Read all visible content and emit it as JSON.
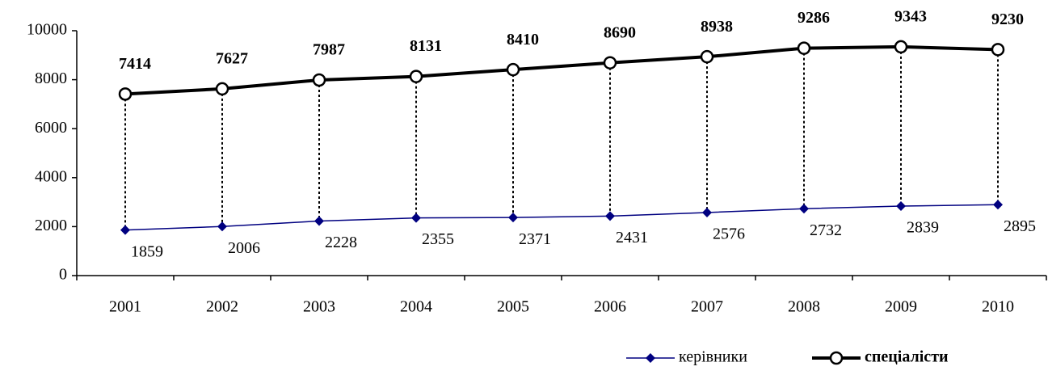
{
  "chart_data": {
    "type": "line",
    "categories": [
      "2001",
      "2002",
      "2003",
      "2004",
      "2005",
      "2006",
      "2007",
      "2008",
      "2009",
      "2010"
    ],
    "series": [
      {
        "name": "керівники",
        "color": "#000080",
        "values": [
          1859,
          2006,
          2228,
          2355,
          2371,
          2431,
          2576,
          2732,
          2839,
          2895
        ]
      },
      {
        "name": "спеціалісти",
        "color": "#000000",
        "values": [
          7414,
          7627,
          7987,
          8131,
          8410,
          8690,
          8938,
          9286,
          9343,
          9230
        ]
      }
    ],
    "ylim": [
      0,
      10000
    ],
    "yticks": [
      0,
      2000,
      4000,
      6000,
      8000,
      10000
    ],
    "grid": false,
    "legend": "bottom",
    "drop_lines": true
  }
}
